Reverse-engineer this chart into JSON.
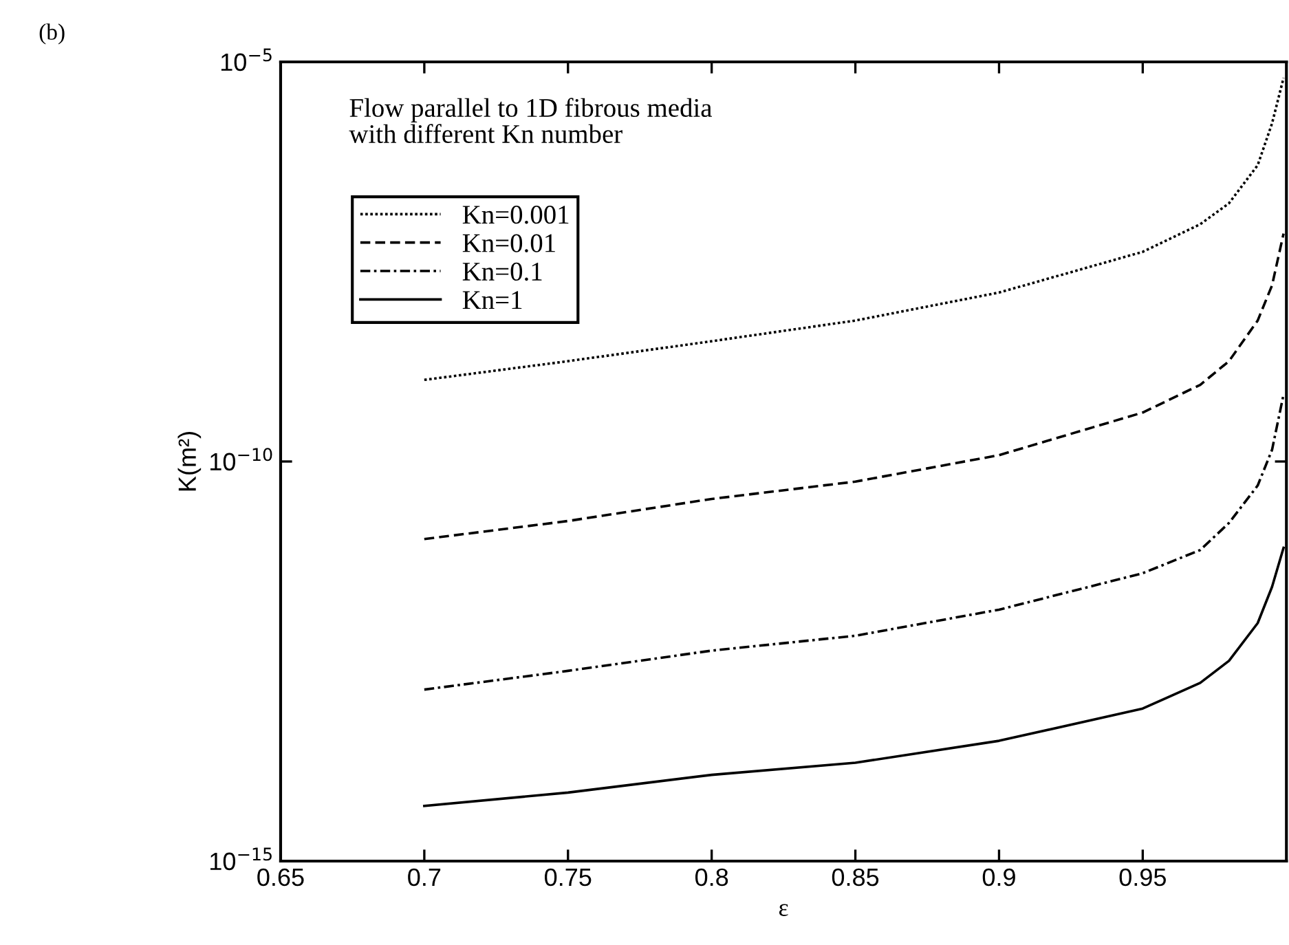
{
  "chart_data": {
    "type": "line",
    "xlabel": "ε",
    "ylabel": "K(m²)",
    "annotations": [
      "(b)",
      "Flow parallel to 1D fibrous media\nwith different Kn number"
    ],
    "x": [
      0.7,
      0.75,
      0.8,
      0.85,
      0.9,
      0.95,
      0.97,
      0.98,
      0.99,
      0.995,
      0.999
    ],
    "series": [
      {
        "name": "Kn=0.001",
        "color": "#000000",
        "line_style": "dotted",
        "values": [
          1.05e-09,
          1.8e-09,
          3.2e-09,
          5.8e-09,
          1.3e-08,
          4.2e-08,
          9.3e-08,
          1.7e-07,
          5.1e-07,
          1.7e-06,
          6.3e-06
        ]
      },
      {
        "name": "Kn=0.01",
        "color": "#000000",
        "line_style": "dashed",
        "values": [
          1.07e-11,
          1.8e-11,
          3.4e-11,
          5.6e-11,
          1.2e-10,
          4.1e-10,
          9.1e-10,
          1.8e-09,
          5.8e-09,
          1.6e-08,
          7.1e-08
        ]
      },
      {
        "name": "Kn=0.1",
        "color": "#000000",
        "line_style": "dashdot",
        "values": [
          1.4e-13,
          2.4e-13,
          4.3e-13,
          6.6e-13,
          1.4e-12,
          4e-12,
          7.8e-12,
          1.7e-11,
          5e-11,
          1.4e-10,
          6.9e-10
        ]
      },
      {
        "name": "Kn=1",
        "color": "#000000",
        "line_style": "solid",
        "values": [
          4.9e-15,
          7.2e-15,
          1.2e-14,
          1.7e-14,
          3.2e-14,
          8.1e-14,
          1.7e-13,
          3.2e-13,
          9.5e-13,
          2.7e-12,
          8.3e-12
        ]
      }
    ],
    "log": "y",
    "xlim": [
      0.65,
      1.0
    ],
    "xticks": [
      0.65,
      0.7,
      0.75,
      0.8,
      0.85,
      0.9,
      0.95
    ],
    "ylim": [
      1e-15,
      1e-05
    ],
    "yticks": [
      {
        "value": 1e-15,
        "label": "10$^{−15}$"
      },
      {
        "value": 1e-10,
        "label": "10$^{−10}$"
      },
      {
        "value": 1e-05,
        "label": "10$^{−5}$"
      }
    ],
    "grid": false,
    "legend": "top left",
    "marker": "none"
  }
}
